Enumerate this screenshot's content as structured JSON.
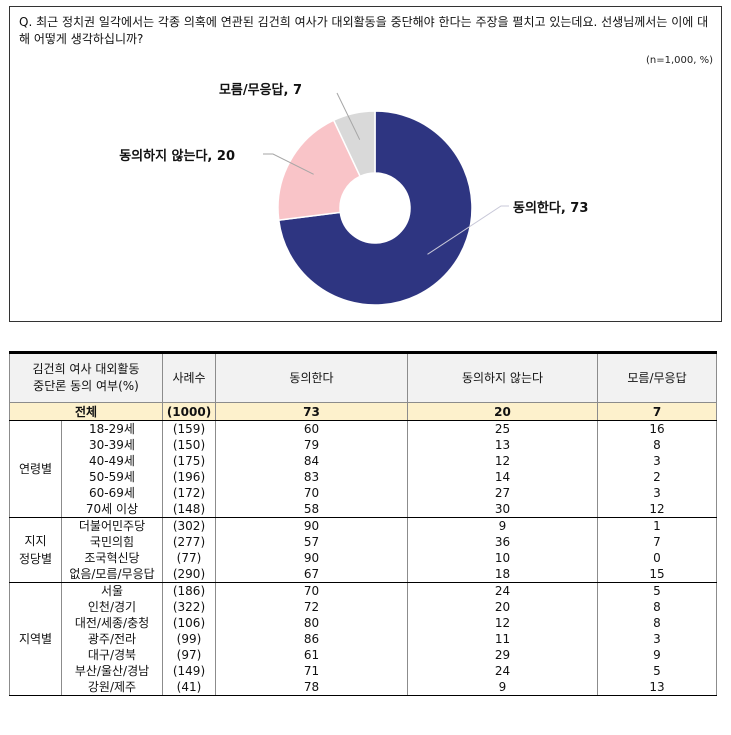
{
  "question": "Q. 최근 정치권 일각에서는 각종 의혹에 연관된 김건희 여사가 대외활동을 중단해야 한다는 주장을 펼치고 있는데요. 선생님께서는 이에 대해 어떻게 생각하십니까?",
  "note": "(n=1,000,  %)",
  "chart_data": {
    "type": "pie",
    "variant": "donut",
    "categories": [
      "동의한다",
      "동의하지 않는다",
      "모름/무응답"
    ],
    "values": [
      73,
      20,
      7
    ],
    "labels": [
      "동의한다, 73",
      "동의하지 않는다, 20",
      "모름/무응답, 7"
    ],
    "colors": [
      "#2e3581",
      "#f9c4c8",
      "#d9d9d9"
    ]
  },
  "table": {
    "title_line1": "김건희 여사 대외활동",
    "title_line2": "중단론 동의 여부(%)",
    "col_sample": "사례수",
    "col_agree": "동의한다",
    "col_disagree": "동의하지 않는다",
    "col_unknown": "모름/무응답",
    "total": {
      "label": "전체",
      "n": "(1000)",
      "agree": "73",
      "disagree": "20",
      "unknown": "7"
    },
    "groups": [
      {
        "label": "연령별",
        "rows": [
          {
            "name": "18-29세",
            "n": "(159)",
            "agree": "60",
            "disagree": "25",
            "unknown": "16"
          },
          {
            "name": "30-39세",
            "n": "(150)",
            "agree": "79",
            "disagree": "13",
            "unknown": "8"
          },
          {
            "name": "40-49세",
            "n": "(175)",
            "agree": "84",
            "disagree": "12",
            "unknown": "3"
          },
          {
            "name": "50-59세",
            "n": "(196)",
            "agree": "83",
            "disagree": "14",
            "unknown": "2"
          },
          {
            "name": "60-69세",
            "n": "(172)",
            "agree": "70",
            "disagree": "27",
            "unknown": "3"
          },
          {
            "name": "70세 이상",
            "n": "(148)",
            "agree": "58",
            "disagree": "30",
            "unknown": "12"
          }
        ]
      },
      {
        "label": "지지\n정당별",
        "rows": [
          {
            "name": "더불어민주당",
            "n": "(302)",
            "agree": "90",
            "disagree": "9",
            "unknown": "1"
          },
          {
            "name": "국민의힘",
            "n": "(277)",
            "agree": "57",
            "disagree": "36",
            "unknown": "7"
          },
          {
            "name": "조국혁신당",
            "n": "(77)",
            "agree": "90",
            "disagree": "10",
            "unknown": "0"
          },
          {
            "name": "없음/모름/무응답",
            "n": "(290)",
            "agree": "67",
            "disagree": "18",
            "unknown": "15"
          }
        ]
      },
      {
        "label": "지역별",
        "rows": [
          {
            "name": "서울",
            "n": "(186)",
            "agree": "70",
            "disagree": "24",
            "unknown": "5"
          },
          {
            "name": "인천/경기",
            "n": "(322)",
            "agree": "72",
            "disagree": "20",
            "unknown": "8"
          },
          {
            "name": "대전/세종/충청",
            "n": "(106)",
            "agree": "80",
            "disagree": "12",
            "unknown": "8"
          },
          {
            "name": "광주/전라",
            "n": "(99)",
            "agree": "86",
            "disagree": "11",
            "unknown": "3"
          },
          {
            "name": "대구/경북",
            "n": "(97)",
            "agree": "61",
            "disagree": "29",
            "unknown": "9"
          },
          {
            "name": "부산/울산/경남",
            "n": "(149)",
            "agree": "71",
            "disagree": "24",
            "unknown": "5"
          },
          {
            "name": "강원/제주",
            "n": "(41)",
            "agree": "78",
            "disagree": "9",
            "unknown": "13"
          }
        ]
      }
    ]
  }
}
